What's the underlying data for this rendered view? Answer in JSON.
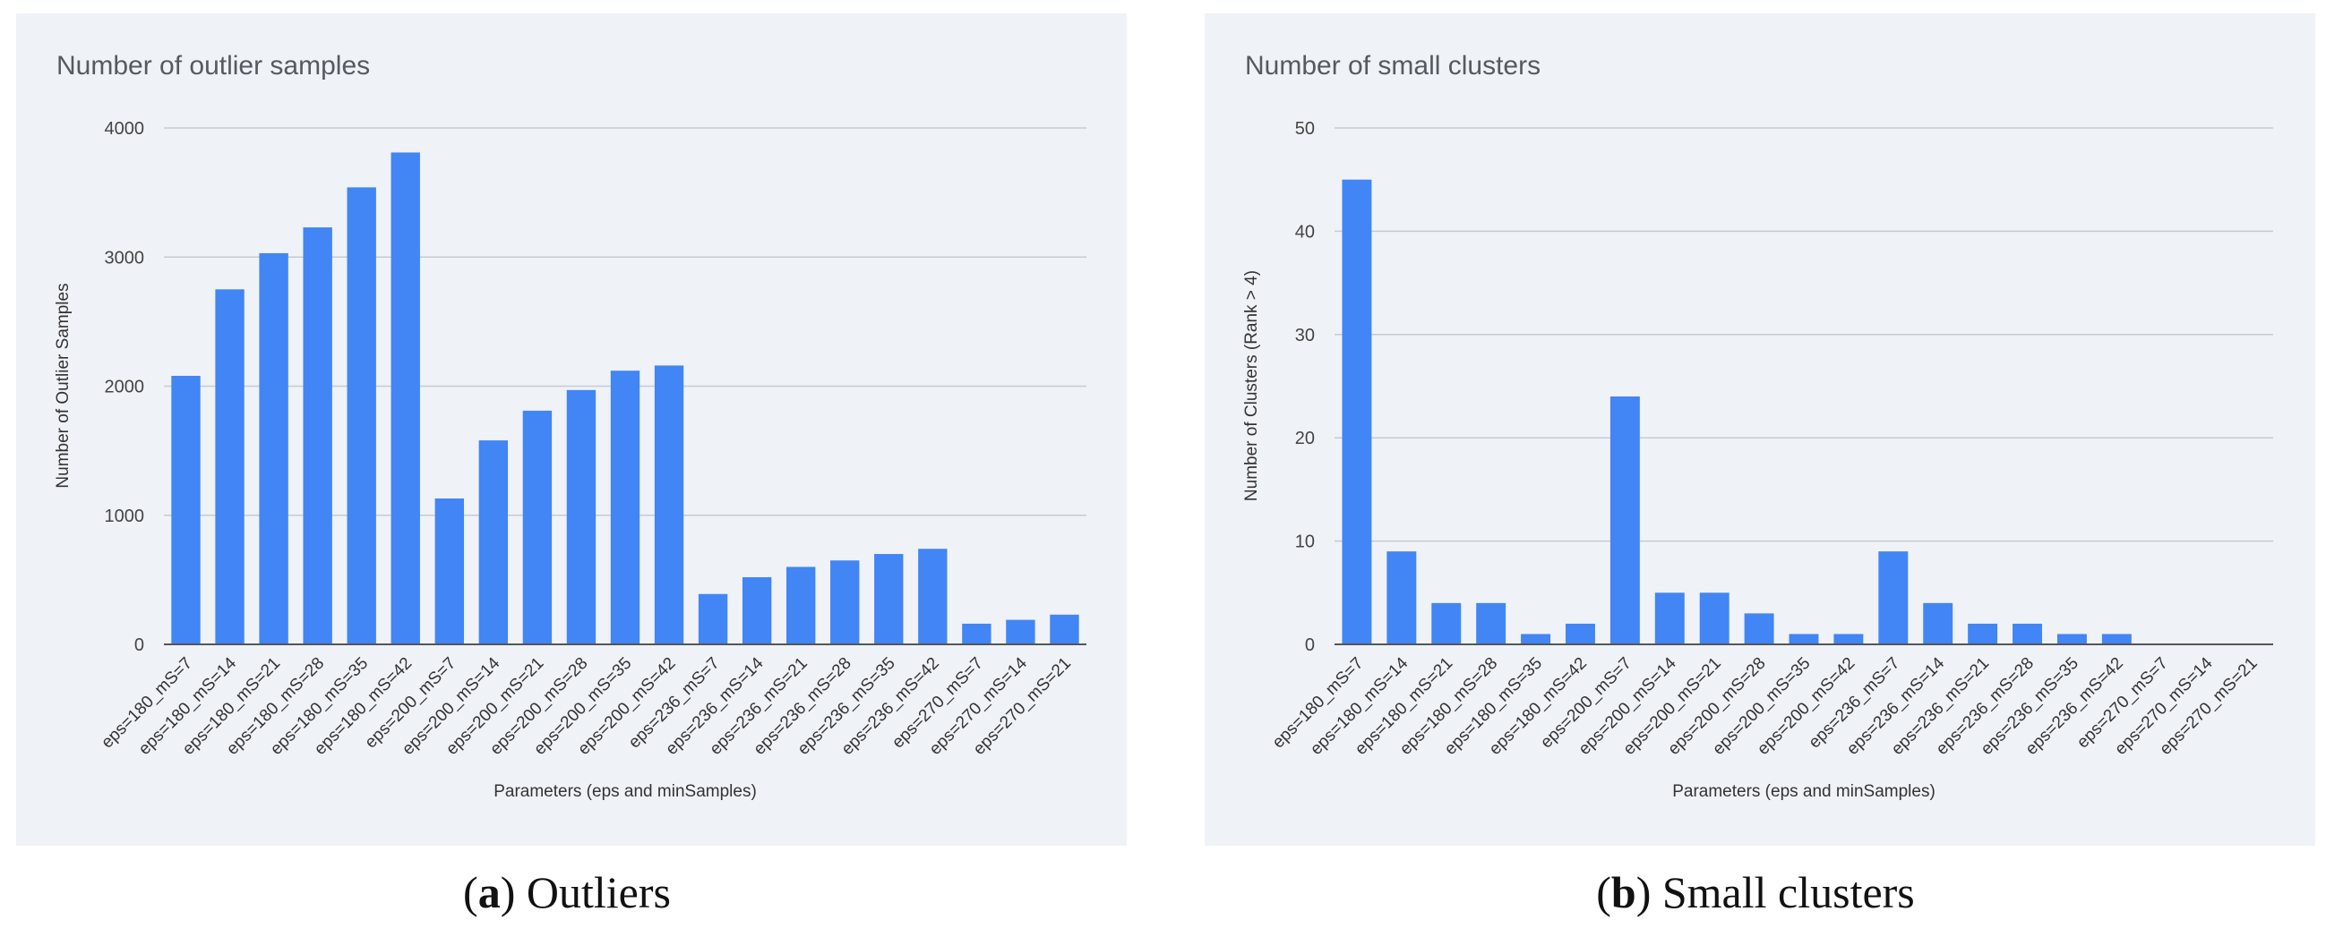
{
  "colors": {
    "bar": "#4285f4",
    "panel_bg": "#eff2f7",
    "grid": "#c6cbd3"
  },
  "captions": [
    {
      "letter": "a",
      "text": "Outliers"
    },
    {
      "letter": "b",
      "text": "Small clusters"
    }
  ],
  "chart_data": [
    {
      "type": "bar",
      "title": "Number of outlier samples",
      "xlabel": "Parameters (eps and minSamples)",
      "ylabel": "Number of Outlier Samples",
      "ylim": [
        0,
        4000
      ],
      "yticks": [
        0,
        1000,
        2000,
        3000,
        4000
      ],
      "grid": true,
      "categories": [
        "eps=180_mS=7",
        "eps=180_mS=14",
        "eps=180_mS=21",
        "eps=180_mS=28",
        "eps=180_mS=35",
        "eps=180_mS=42",
        "eps=200_mS=7",
        "eps=200_mS=14",
        "eps=200_mS=21",
        "eps=200_mS=28",
        "eps=200_mS=35",
        "eps=200_mS=42",
        "eps=236_mS=7",
        "eps=236_mS=14",
        "eps=236_mS=21",
        "eps=236_mS=28",
        "eps=236_mS=35",
        "eps=236_mS=42",
        "eps=270_mS=7",
        "eps=270_mS=14",
        "eps=270_mS=21"
      ],
      "values": [
        2080,
        2750,
        3030,
        3230,
        3540,
        3810,
        1130,
        1580,
        1810,
        1970,
        2120,
        2160,
        390,
        520,
        600,
        650,
        700,
        740,
        160,
        190,
        230
      ]
    },
    {
      "type": "bar",
      "title": "Number of small clusters",
      "xlabel": "Parameters (eps and minSamples)",
      "ylabel": "Number of Clusters (Rank > 4)",
      "ylim": [
        0,
        50
      ],
      "yticks": [
        0,
        10,
        20,
        30,
        40,
        50
      ],
      "grid": true,
      "categories": [
        "eps=180_mS=7",
        "eps=180_mS=14",
        "eps=180_mS=21",
        "eps=180_mS=28",
        "eps=180_mS=35",
        "eps=180_mS=42",
        "eps=200_mS=7",
        "eps=200_mS=14",
        "eps=200_mS=21",
        "eps=200_mS=28",
        "eps=200_mS=35",
        "eps=200_mS=42",
        "eps=236_mS=7",
        "eps=236_mS=14",
        "eps=236_mS=21",
        "eps=236_mS=28",
        "eps=236_mS=35",
        "eps=236_mS=42",
        "eps=270_mS=7",
        "eps=270_mS=14",
        "eps=270_mS=21"
      ],
      "values": [
        45,
        9,
        4,
        4,
        1,
        2,
        24,
        5,
        5,
        3,
        1,
        1,
        9,
        4,
        2,
        2,
        1,
        1,
        0,
        0,
        0
      ]
    }
  ]
}
